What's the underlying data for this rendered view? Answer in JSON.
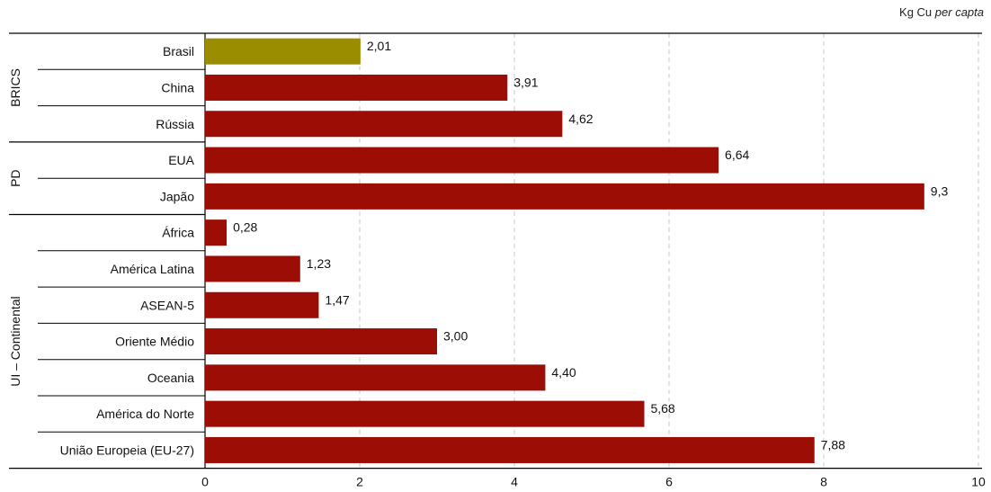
{
  "unit_label": {
    "prefix": "Kg Cu",
    "italic": "per capta"
  },
  "colors": {
    "highlight": "#9a8d00",
    "bar": "#9b0d05",
    "grid": "#c8c8c8",
    "axis": "#000000",
    "text": "#111111"
  },
  "chart_data": {
    "type": "bar",
    "orientation": "horizontal",
    "xlim": [
      0,
      10
    ],
    "xticks": [
      0,
      2,
      4,
      6,
      8,
      10
    ],
    "grid": "vertical dashed",
    "groups": [
      {
        "name": "BRICS",
        "items": [
          {
            "label": "Brasil",
            "value": 2.01,
            "display": "2,01",
            "highlight": true
          },
          {
            "label": "China",
            "value": 3.91,
            "display": "3,91"
          },
          {
            "label": "Rússia",
            "value": 4.62,
            "display": "4,62"
          }
        ]
      },
      {
        "name": "PD",
        "items": [
          {
            "label": "EUA",
            "value": 6.64,
            "display": "6,64"
          },
          {
            "label": "Japão",
            "value": 9.3,
            "display": "9,3"
          }
        ]
      },
      {
        "name": "UI – Continental",
        "items": [
          {
            "label": "África",
            "value": 0.28,
            "display": "0,28"
          },
          {
            "label": "América Latina",
            "value": 1.23,
            "display": "1,23"
          },
          {
            "label": "ASEAN-5",
            "value": 1.47,
            "display": "1,47"
          },
          {
            "label": "Oriente Médio",
            "value": 3.0,
            "display": "3,00"
          },
          {
            "label": "Oceania",
            "value": 4.4,
            "display": "4,40"
          },
          {
            "label": "América do Norte",
            "value": 5.68,
            "display": "5,68"
          },
          {
            "label": "União Europeia (EU-27)",
            "value": 7.88,
            "display": "7,88"
          }
        ]
      }
    ]
  }
}
